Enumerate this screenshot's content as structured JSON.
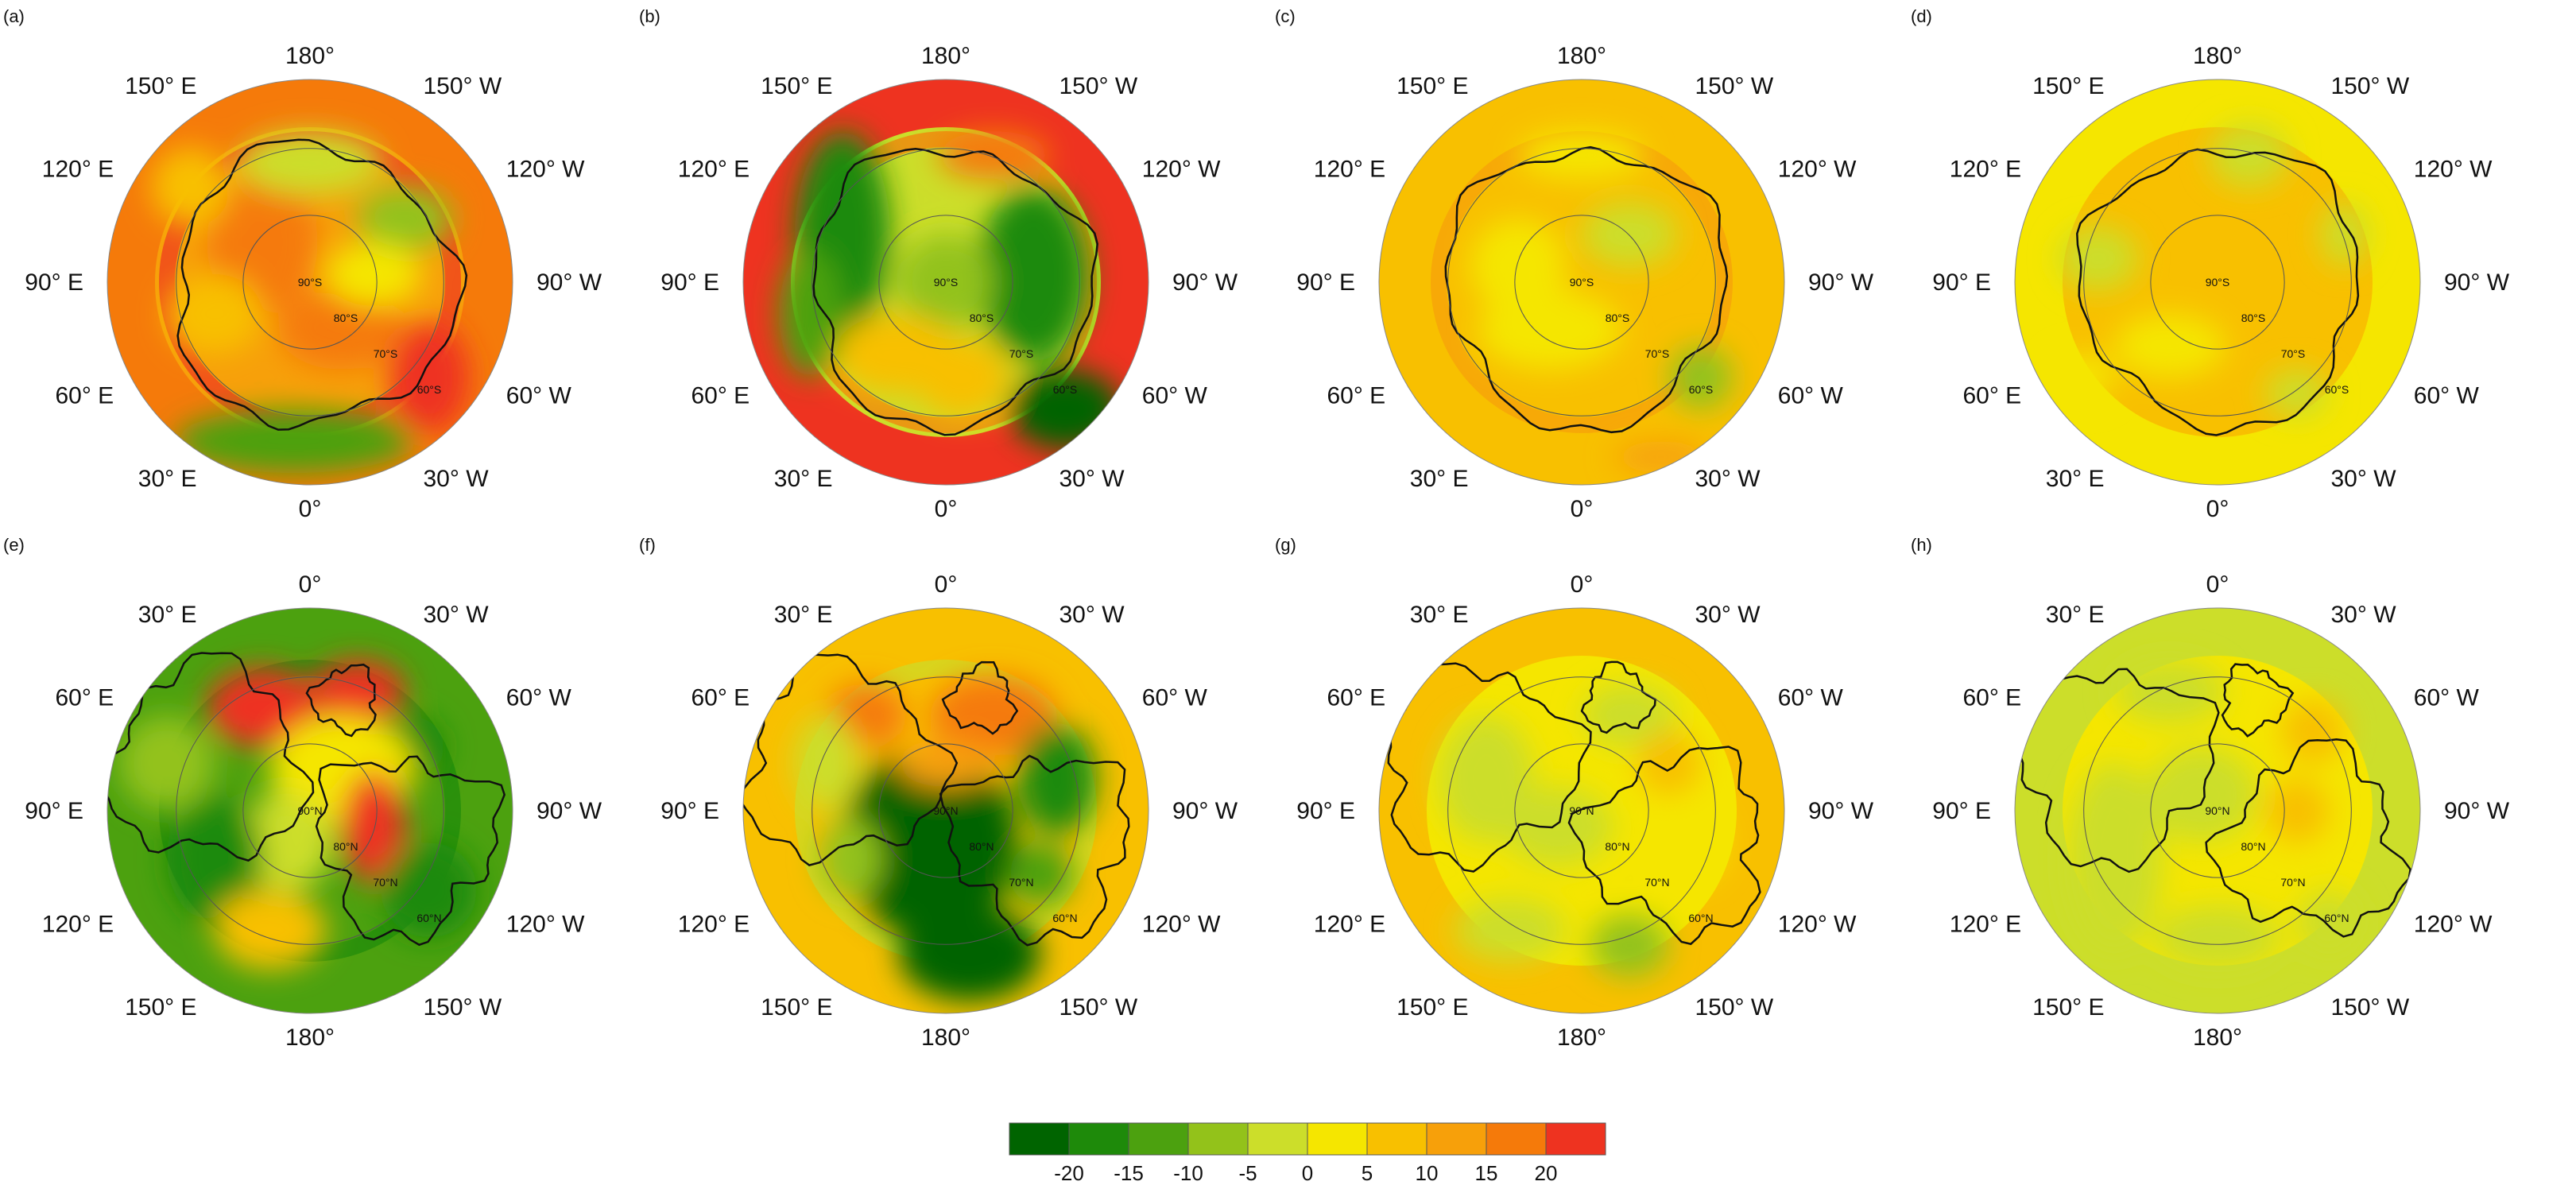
{
  "panels": [
    {
      "id": "a",
      "label": "(a)",
      "hemisphere": "south",
      "lon_labels": [
        "180°",
        "150° W",
        "120° W",
        "90° W",
        "60° W",
        "30° W",
        "0°",
        "30° E",
        "60° E",
        "90° E",
        "120° E",
        "150° E"
      ],
      "lat_labels": [
        "90°S",
        "80°S",
        "70°S",
        "60°S"
      ]
    },
    {
      "id": "b",
      "label": "(b)",
      "hemisphere": "south",
      "lon_labels": [
        "180°",
        "150° W",
        "120° W",
        "90° W",
        "60° W",
        "30° W",
        "0°",
        "30° E",
        "60° E",
        "90° E",
        "120° E",
        "150° E"
      ],
      "lat_labels": [
        "90°S",
        "80°S",
        "70°S",
        "60°S"
      ]
    },
    {
      "id": "c",
      "label": "(c)",
      "hemisphere": "south",
      "lon_labels": [
        "180°",
        "150° W",
        "120° W",
        "90° W",
        "60° W",
        "30° W",
        "0°",
        "30° E",
        "60° E",
        "90° E",
        "120° E",
        "150° E"
      ],
      "lat_labels": [
        "90°S",
        "80°S",
        "70°S",
        "60°S"
      ]
    },
    {
      "id": "d",
      "label": "(d)",
      "hemisphere": "south",
      "lon_labels": [
        "180°",
        "150° W",
        "120° W",
        "90° W",
        "60° W",
        "30° W",
        "0°",
        "30° E",
        "60° E",
        "90° E",
        "120° E",
        "150° E"
      ],
      "lat_labels": [
        "90°S",
        "80°S",
        "70°S",
        "60°S"
      ]
    },
    {
      "id": "e",
      "label": "(e)",
      "hemisphere": "north",
      "lon_labels": [
        "0°",
        "30° W",
        "60° W",
        "90° W",
        "120° W",
        "150° W",
        "180°",
        "150° E",
        "120° E",
        "90° E",
        "60° E",
        "30° E"
      ],
      "lat_labels": [
        "90°N",
        "80°N",
        "70°N",
        "60°N"
      ]
    },
    {
      "id": "f",
      "label": "(f)",
      "hemisphere": "north",
      "lon_labels": [
        "0°",
        "30° W",
        "60° W",
        "90° W",
        "120° W",
        "150° W",
        "180°",
        "150° E",
        "120° E",
        "90° E",
        "60° E",
        "30° E"
      ],
      "lat_labels": [
        "90°N",
        "80°N",
        "70°N",
        "60°N"
      ]
    },
    {
      "id": "g",
      "label": "(g)",
      "hemisphere": "north",
      "lon_labels": [
        "0°",
        "30° W",
        "60° W",
        "90° W",
        "120° W",
        "150° W",
        "180°",
        "150° E",
        "120° E",
        "90° E",
        "60° E",
        "30° E"
      ],
      "lat_labels": [
        "90°N",
        "80°N",
        "70°N",
        "60°N"
      ]
    },
    {
      "id": "h",
      "label": "(h)",
      "hemisphere": "north",
      "lon_labels": [
        "0°",
        "30° W",
        "60° W",
        "90° W",
        "120° W",
        "150° W",
        "180°",
        "150° E",
        "120° E",
        "90° E",
        "60° E",
        "30° E"
      ],
      "lat_labels": [
        "90°N",
        "80°N",
        "70°N",
        "60°N"
      ]
    }
  ],
  "colorbar": {
    "colors": [
      "#006400",
      "#1e8a0a",
      "#4ca10f",
      "#93c21a",
      "#ccde2a",
      "#f5e600",
      "#f8c000",
      "#f7a00a",
      "#f57a0a",
      "#ee3320"
    ],
    "ticks": [
      "-20",
      "-15",
      "-10",
      "-5",
      "0",
      "5",
      "10",
      "15",
      "20"
    ]
  },
  "colors": {
    "land_outline": "#111111",
    "grid_circle": "#555555"
  }
}
